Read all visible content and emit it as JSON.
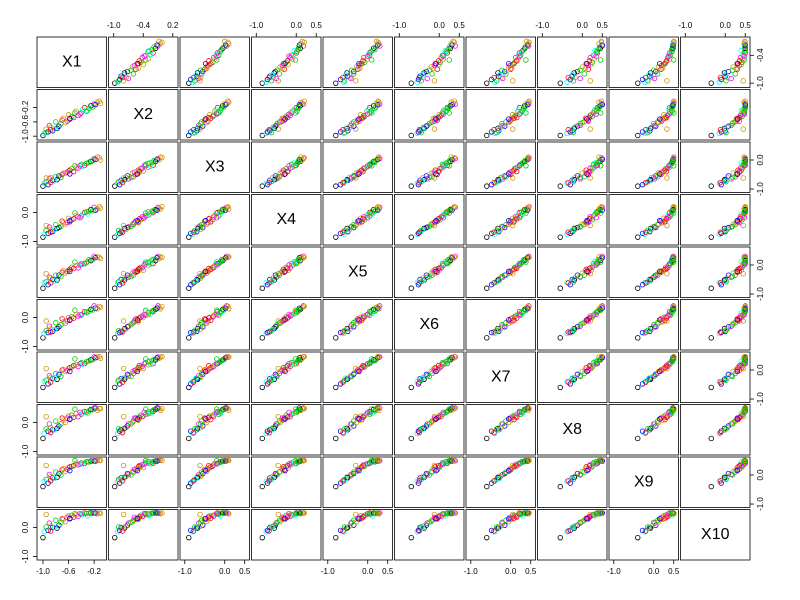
{
  "chart_data": {
    "type": "scatter_matrix",
    "variables": [
      {
        "name": "X1",
        "lim": [
          -1.05,
          -0.05
        ],
        "xticks": [
          {
            "value": -1,
            "label": "-1.0"
          },
          -0.6,
          -0.2
        ],
        "yticks": [
          {
            "value": -1,
            "label": "-1.0"
          },
          -0.4
        ]
      },
      {
        "name": "X2",
        "lim": [
          -1.05,
          0.25
        ],
        "xticks": [
          {
            "value": -1,
            "label": "-1.0"
          },
          -0.4,
          0.2
        ],
        "yticks": [
          {
            "value": -1,
            "label": "-1.0"
          },
          -0.6,
          -0.2
        ]
      },
      {
        "name": "X3",
        "lim": [
          -1.05,
          0.55
        ],
        "xticks": [
          {
            "value": -1,
            "label": "-1.0"
          },
          {
            "value": 0,
            "label": "0.0"
          },
          0.5
        ],
        "yticks": [
          {
            "value": -1,
            "label": "-1.0"
          },
          {
            "value": 0,
            "label": "0.0"
          }
        ]
      },
      {
        "name": "X4",
        "lim": [
          -1.05,
          0.55
        ],
        "xticks": [
          {
            "value": -1,
            "label": "-1.0"
          },
          {
            "value": 0,
            "label": "0.0"
          },
          0.5
        ],
        "yticks": [
          {
            "value": -1,
            "label": "-1.0"
          },
          {
            "value": 0,
            "label": "0.0"
          }
        ]
      },
      {
        "name": "X5",
        "lim": [
          -1.05,
          0.55
        ],
        "xticks": [
          {
            "value": -1,
            "label": "-1.0"
          },
          {
            "value": 0,
            "label": "0.0"
          },
          0.5
        ],
        "yticks": [
          {
            "value": -1,
            "label": "-1.0"
          },
          {
            "value": 0,
            "label": "0.0"
          }
        ]
      },
      {
        "name": "X6",
        "lim": [
          -1.05,
          0.55
        ],
        "xticks": [
          {
            "value": -1,
            "label": "-1.0"
          },
          {
            "value": 0,
            "label": "0.0"
          },
          0.5
        ],
        "yticks": [
          {
            "value": -1,
            "label": "-1.0"
          },
          {
            "value": 0,
            "label": "0.0"
          }
        ]
      },
      {
        "name": "X7",
        "lim": [
          -1.05,
          0.55
        ],
        "xticks": [
          {
            "value": -1,
            "label": "-1.0"
          },
          {
            "value": 0,
            "label": "0.0"
          },
          0.5
        ],
        "yticks": [
          {
            "value": -1,
            "label": "-1.0"
          },
          {
            "value": 0,
            "label": "0.0"
          }
        ]
      },
      {
        "name": "X8",
        "lim": [
          -1.05,
          0.55
        ],
        "xticks": [
          {
            "value": -1,
            "label": "-1.0"
          },
          {
            "value": 0,
            "label": "0.0"
          },
          0.5
        ],
        "yticks": [
          {
            "value": -1,
            "label": "-1.0"
          },
          {
            "value": 0,
            "label": "0.0"
          }
        ]
      },
      {
        "name": "X9",
        "lim": [
          -1.05,
          0.55
        ],
        "xticks": [
          {
            "value": -1,
            "label": "-1.0"
          },
          {
            "value": 0,
            "label": "0.0"
          },
          0.5
        ],
        "yticks": [
          {
            "value": -1,
            "label": "-1.0"
          },
          {
            "value": 0,
            "label": "0.0"
          }
        ]
      },
      {
        "name": "X10",
        "lim": [
          -1.05,
          0.55
        ],
        "xticks": [
          {
            "value": -1,
            "label": "-1.0"
          },
          {
            "value": 0,
            "label": "0.0"
          },
          0.5
        ],
        "yticks": [
          {
            "value": -1,
            "label": "-1.0"
          },
          {
            "value": 0,
            "label": "0.0"
          }
        ]
      }
    ],
    "points": [
      {
        "color": "#CD950C",
        "values": [
          -0.95,
          -0.8,
          -0.62,
          -0.45,
          -0.3,
          -0.12,
          0.05,
          0.2,
          0.33,
          0.45
        ]
      },
      {
        "color": "#00CD00",
        "values": [
          -0.5,
          -0.35,
          -0.2,
          -0.02,
          0.1,
          0.25,
          0.38,
          0.46,
          0.5,
          0.48
        ]
      },
      {
        "color": "#FF00FF",
        "values": [
          -0.2,
          -0.1,
          0.05,
          0.18,
          0.3,
          0.4,
          0.45,
          0.5,
          0.49,
          0.5
        ]
      },
      {
        "color": "#0000FF",
        "values": [
          -0.85,
          -0.85,
          -0.7,
          -0.66,
          -0.5,
          -0.48,
          -0.3,
          -0.25,
          -0.1,
          0.0
        ]
      },
      {
        "color": "#FF0000",
        "values": [
          -0.7,
          -0.55,
          -0.5,
          -0.3,
          -0.25,
          -0.05,
          0.0,
          0.15,
          0.18,
          0.3
        ]
      },
      {
        "color": "#00FFFF",
        "values": [
          -0.3,
          -0.28,
          -0.1,
          -0.05,
          0.12,
          0.15,
          0.3,
          0.32,
          0.45,
          0.4
        ]
      },
      {
        "color": "#000000",
        "values": [
          -1.0,
          -0.98,
          -0.9,
          -0.85,
          -0.8,
          -0.7,
          -0.6,
          -0.55,
          -0.4,
          -0.35
        ]
      },
      {
        "color": "#CD950C",
        "values": [
          -0.6,
          -0.4,
          -0.38,
          -0.2,
          -0.18,
          0.0,
          0.05,
          0.22,
          0.25,
          0.4
        ]
      },
      {
        "color": "#00CD00",
        "values": [
          -0.4,
          -0.35,
          -0.15,
          -0.12,
          0.05,
          0.08,
          0.25,
          0.28,
          0.42,
          0.45
        ]
      },
      {
        "color": "#CD950C",
        "values": [
          -0.15,
          -0.05,
          0.1,
          0.12,
          0.28,
          0.3,
          0.44,
          0.42,
          0.5,
          0.47
        ]
      },
      {
        "color": "#FF00FF",
        "values": [
          -0.9,
          -0.7,
          -0.65,
          -0.5,
          -0.42,
          -0.3,
          -0.2,
          -0.05,
          0.02,
          0.15
        ]
      },
      {
        "color": "#0000FF",
        "values": [
          -0.75,
          -0.72,
          -0.55,
          -0.52,
          -0.35,
          -0.32,
          -0.15,
          -0.12,
          0.05,
          0.08
        ]
      },
      {
        "color": "#00CD00",
        "values": [
          -0.55,
          -0.45,
          -0.3,
          -0.25,
          -0.08,
          0.02,
          0.1,
          0.25,
          0.3,
          0.42
        ]
      },
      {
        "color": "#FF0000",
        "values": [
          -0.35,
          -0.2,
          -0.18,
          0.0,
          0.05,
          0.2,
          0.22,
          0.38,
          0.4,
          0.5
        ]
      },
      {
        "color": "#00FFFF",
        "values": [
          -0.98,
          -0.92,
          -0.8,
          -0.75,
          -0.6,
          -0.55,
          -0.4,
          -0.38,
          -0.22,
          -0.15
        ]
      },
      {
        "color": "#CD950C",
        "values": [
          -0.65,
          -0.62,
          -0.45,
          -0.4,
          -0.28,
          -0.2,
          -0.05,
          0.0,
          0.12,
          0.2
        ]
      },
      {
        "color": "#000000",
        "values": [
          -0.25,
          -0.15,
          -0.05,
          0.1,
          0.15,
          0.28,
          0.35,
          0.45,
          0.48,
          0.5
        ]
      },
      {
        "color": "#00CD00",
        "values": [
          -0.8,
          -0.6,
          -0.58,
          -0.42,
          -0.35,
          -0.18,
          -0.12,
          0.05,
          0.1,
          0.25
        ]
      },
      {
        "color": "#FF00FF",
        "values": [
          -0.45,
          -0.42,
          -0.28,
          -0.15,
          -0.1,
          0.05,
          0.12,
          0.2,
          0.35,
          0.38
        ]
      },
      {
        "color": "#CD950C",
        "values": [
          -0.1,
          -0.08,
          0.0,
          0.15,
          0.22,
          0.35,
          0.4,
          0.48,
          0.5,
          0.49
        ]
      },
      {
        "color": "#0000FF",
        "values": [
          -0.92,
          -0.88,
          -0.85,
          -0.72,
          -0.68,
          -0.52,
          -0.48,
          -0.3,
          -0.28,
          -0.1
        ]
      },
      {
        "color": "#FF0000",
        "values": [
          -0.58,
          -0.5,
          -0.35,
          -0.32,
          -0.15,
          -0.1,
          0.08,
          0.1,
          0.28,
          0.32
        ]
      },
      {
        "color": "#00CD00",
        "values": [
          -0.72,
          -0.65,
          -0.6,
          -0.48,
          -0.4,
          -0.25,
          -0.22,
          -0.05,
          0.0,
          0.18
        ]
      },
      {
        "color": "#00FFFF",
        "values": [
          -0.38,
          -0.25,
          -0.22,
          -0.05,
          0.02,
          0.12,
          0.2,
          0.32,
          0.38,
          0.45
        ]
      },
      {
        "color": "#CD950C",
        "values": [
          -0.88,
          -0.75,
          -0.6,
          -0.58,
          -0.45,
          -0.4,
          -0.25,
          -0.18,
          -0.05,
          0.05
        ]
      },
      {
        "color": "#FF00FF",
        "values": [
          -0.62,
          -0.58,
          -0.42,
          -0.35,
          -0.22,
          -0.12,
          -0.02,
          0.15,
          0.2,
          0.35
        ]
      },
      {
        "color": "#00CD00",
        "values": [
          -0.28,
          -0.22,
          -0.08,
          0.05,
          0.18,
          0.22,
          0.32,
          0.4,
          0.45,
          0.5
        ]
      },
      {
        "color": "#000000",
        "values": [
          -0.78,
          -0.78,
          -0.68,
          -0.55,
          -0.52,
          -0.38,
          -0.32,
          -0.2,
          -0.08,
          -0.02
        ]
      },
      {
        "color": "#CD950C",
        "values": [
          -0.48,
          -0.3,
          -0.25,
          -0.1,
          -0.02,
          0.1,
          0.18,
          0.3,
          0.4,
          0.44
        ]
      },
      {
        "color": "#0000FF",
        "values": [
          -0.18,
          -0.12,
          0.02,
          0.08,
          0.25,
          0.32,
          0.42,
          0.5,
          0.48,
          0.5
        ]
      },
      {
        "color": "#00CD00",
        "values": [
          -0.95,
          -0.9,
          -0.75,
          -0.62,
          -0.58,
          -0.45,
          -0.35,
          -0.22,
          -0.15,
          0.02
        ]
      },
      {
        "color": "#FF0000",
        "values": [
          -0.52,
          -0.48,
          -0.4,
          -0.22,
          -0.12,
          -0.02,
          0.15,
          0.18,
          0.32,
          0.36
        ]
      },
      {
        "color": "#CD950C",
        "values": [
          -0.68,
          -0.5,
          -0.45,
          -0.35,
          -0.2,
          -0.15,
          0.02,
          0.08,
          0.22,
          0.28
        ]
      },
      {
        "color": "#FF00FF",
        "values": [
          -0.42,
          -0.38,
          -0.2,
          -0.18,
          0.0,
          0.1,
          0.22,
          0.35,
          0.38,
          0.48
        ]
      },
      {
        "color": "#00FFFF",
        "values": [
          -0.82,
          -0.8,
          -0.72,
          -0.6,
          -0.55,
          -0.42,
          -0.28,
          -0.25,
          -0.12,
          0.0
        ]
      },
      {
        "color": "#00CD00",
        "values": [
          -0.32,
          -0.3,
          -0.12,
          0.02,
          0.08,
          0.18,
          0.28,
          0.36,
          0.46,
          0.48
        ]
      },
      {
        "color": "#0000FF",
        "values": [
          -0.58,
          -0.52,
          -0.48,
          -0.28,
          -0.22,
          -0.08,
          -0.05,
          0.12,
          0.15,
          0.3
        ]
      },
      {
        "color": "#CD950C",
        "values": [
          -0.12,
          -0.02,
          0.08,
          0.2,
          0.26,
          0.38,
          0.46,
          0.48,
          0.5,
          0.5
        ]
      },
      {
        "color": "#FF0000",
        "values": [
          -0.88,
          -0.82,
          -0.78,
          -0.68,
          -0.62,
          -0.5,
          -0.42,
          -0.35,
          -0.2,
          -0.12
        ]
      },
      {
        "color": "#00CD00",
        "values": [
          -0.22,
          -0.18,
          -0.02,
          0.06,
          0.2,
          0.26,
          0.36,
          0.44,
          0.47,
          0.49
        ]
      }
    ]
  }
}
